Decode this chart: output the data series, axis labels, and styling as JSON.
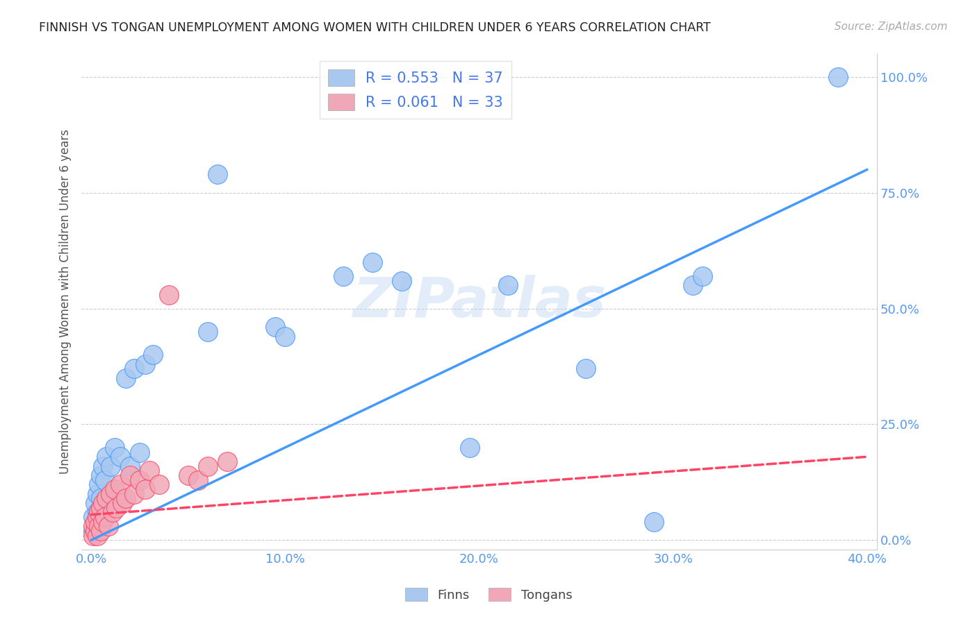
{
  "title": "FINNISH VS TONGAN UNEMPLOYMENT AMONG WOMEN WITH CHILDREN UNDER 6 YEARS CORRELATION CHART",
  "source": "Source: ZipAtlas.com",
  "ylabel_label": "Unemployment Among Women with Children Under 6 years",
  "x_tick_labels": [
    "0.0%",
    "10.0%",
    "20.0%",
    "30.0%",
    "40.0%"
  ],
  "x_tick_values": [
    0.0,
    0.1,
    0.2,
    0.3,
    0.4
  ],
  "y_tick_labels": [
    "0.0%",
    "25.0%",
    "50.0%",
    "75.0%",
    "100.0%"
  ],
  "y_tick_values": [
    0.0,
    0.25,
    0.5,
    0.75,
    1.0
  ],
  "xlim": [
    -0.005,
    0.405
  ],
  "ylim": [
    -0.02,
    1.05
  ],
  "finn_color": "#a8c8f0",
  "tonga_color": "#f0a8b8",
  "finn_line_color": "#4499ff",
  "tonga_line_color": "#ff4466",
  "legend_finn_label": "R = 0.553   N = 37",
  "legend_tonga_label": "R = 0.061   N = 33",
  "finns_legend": "Finns",
  "tongans_legend": "Tongans",
  "watermark": "ZIPatlas",
  "finn_scatter_x": [
    0.001,
    0.001,
    0.002,
    0.002,
    0.003,
    0.003,
    0.004,
    0.004,
    0.005,
    0.005,
    0.006,
    0.007,
    0.008,
    0.009,
    0.01,
    0.012,
    0.015,
    0.018,
    0.02,
    0.022,
    0.025,
    0.028,
    0.032,
    0.06,
    0.065,
    0.095,
    0.1,
    0.13,
    0.145,
    0.16,
    0.195,
    0.215,
    0.255,
    0.29,
    0.31,
    0.315,
    0.385
  ],
  "finn_scatter_y": [
    0.02,
    0.05,
    0.03,
    0.08,
    0.06,
    0.1,
    0.04,
    0.12,
    0.09,
    0.14,
    0.16,
    0.13,
    0.18,
    0.08,
    0.16,
    0.2,
    0.18,
    0.35,
    0.16,
    0.37,
    0.19,
    0.38,
    0.4,
    0.45,
    0.79,
    0.46,
    0.44,
    0.57,
    0.6,
    0.56,
    0.2,
    0.55,
    0.37,
    0.04,
    0.55,
    0.57,
    1.0
  ],
  "tonga_scatter_x": [
    0.001,
    0.001,
    0.002,
    0.002,
    0.003,
    0.003,
    0.004,
    0.004,
    0.005,
    0.005,
    0.006,
    0.006,
    0.007,
    0.008,
    0.009,
    0.01,
    0.011,
    0.012,
    0.013,
    0.015,
    0.016,
    0.018,
    0.02,
    0.022,
    0.025,
    0.028,
    0.03,
    0.035,
    0.04,
    0.05,
    0.055,
    0.06,
    0.07
  ],
  "tonga_scatter_y": [
    0.01,
    0.03,
    0.02,
    0.04,
    0.01,
    0.05,
    0.03,
    0.06,
    0.02,
    0.07,
    0.04,
    0.08,
    0.05,
    0.09,
    0.03,
    0.1,
    0.06,
    0.11,
    0.07,
    0.12,
    0.08,
    0.09,
    0.14,
    0.1,
    0.13,
    0.11,
    0.15,
    0.12,
    0.53,
    0.14,
    0.13,
    0.16,
    0.17
  ],
  "background_color": "#ffffff",
  "grid_color": "#cccccc",
  "finn_line_x": [
    0.0,
    0.4
  ],
  "finn_line_y": [
    0.0,
    0.8
  ],
  "tonga_line_x": [
    0.0,
    0.4
  ],
  "tonga_line_y": [
    0.055,
    0.18
  ]
}
